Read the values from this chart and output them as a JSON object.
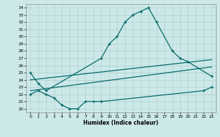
{
  "xlabel": "Humidex (Indice chaleur)",
  "bg_color": "#cce8e8",
  "grid_color": "#b0d0d0",
  "line_color": "#006666",
  "xlim": [
    -0.5,
    23.5
  ],
  "ylim": [
    19.5,
    34.5
  ],
  "yticks": [
    20,
    21,
    22,
    23,
    24,
    25,
    26,
    27,
    28,
    29,
    30,
    31,
    32,
    33,
    34
  ],
  "xticks": [
    0,
    1,
    2,
    3,
    4,
    5,
    6,
    7,
    8,
    9,
    10,
    11,
    12,
    13,
    14,
    15,
    16,
    17,
    18,
    19,
    20,
    21,
    22,
    23
  ],
  "x_top": [
    0,
    1,
    2,
    9,
    10,
    11,
    12,
    13,
    14,
    15,
    16,
    18,
    19,
    20,
    23
  ],
  "y_top": [
    25.0,
    23.5,
    22.5,
    27.0,
    29.0,
    30.0,
    32.0,
    33.0,
    33.5,
    34.0,
    32.0,
    28.0,
    27.0,
    26.5,
    24.5
  ],
  "x_bot": [
    0,
    1,
    2,
    3,
    4,
    5,
    6,
    7,
    8,
    9,
    22,
    23
  ],
  "y_bot": [
    22.0,
    22.5,
    22.0,
    21.5,
    20.5,
    20.0,
    20.0,
    21.0,
    21.0,
    21.0,
    22.5,
    23.0
  ],
  "umid_x0": 0,
  "umid_y0": 24.0,
  "umid_x1": 23,
  "umid_y1": 26.8,
  "lmid_x0": 0,
  "lmid_y0": 22.5,
  "lmid_x1": 23,
  "lmid_y1": 25.8
}
